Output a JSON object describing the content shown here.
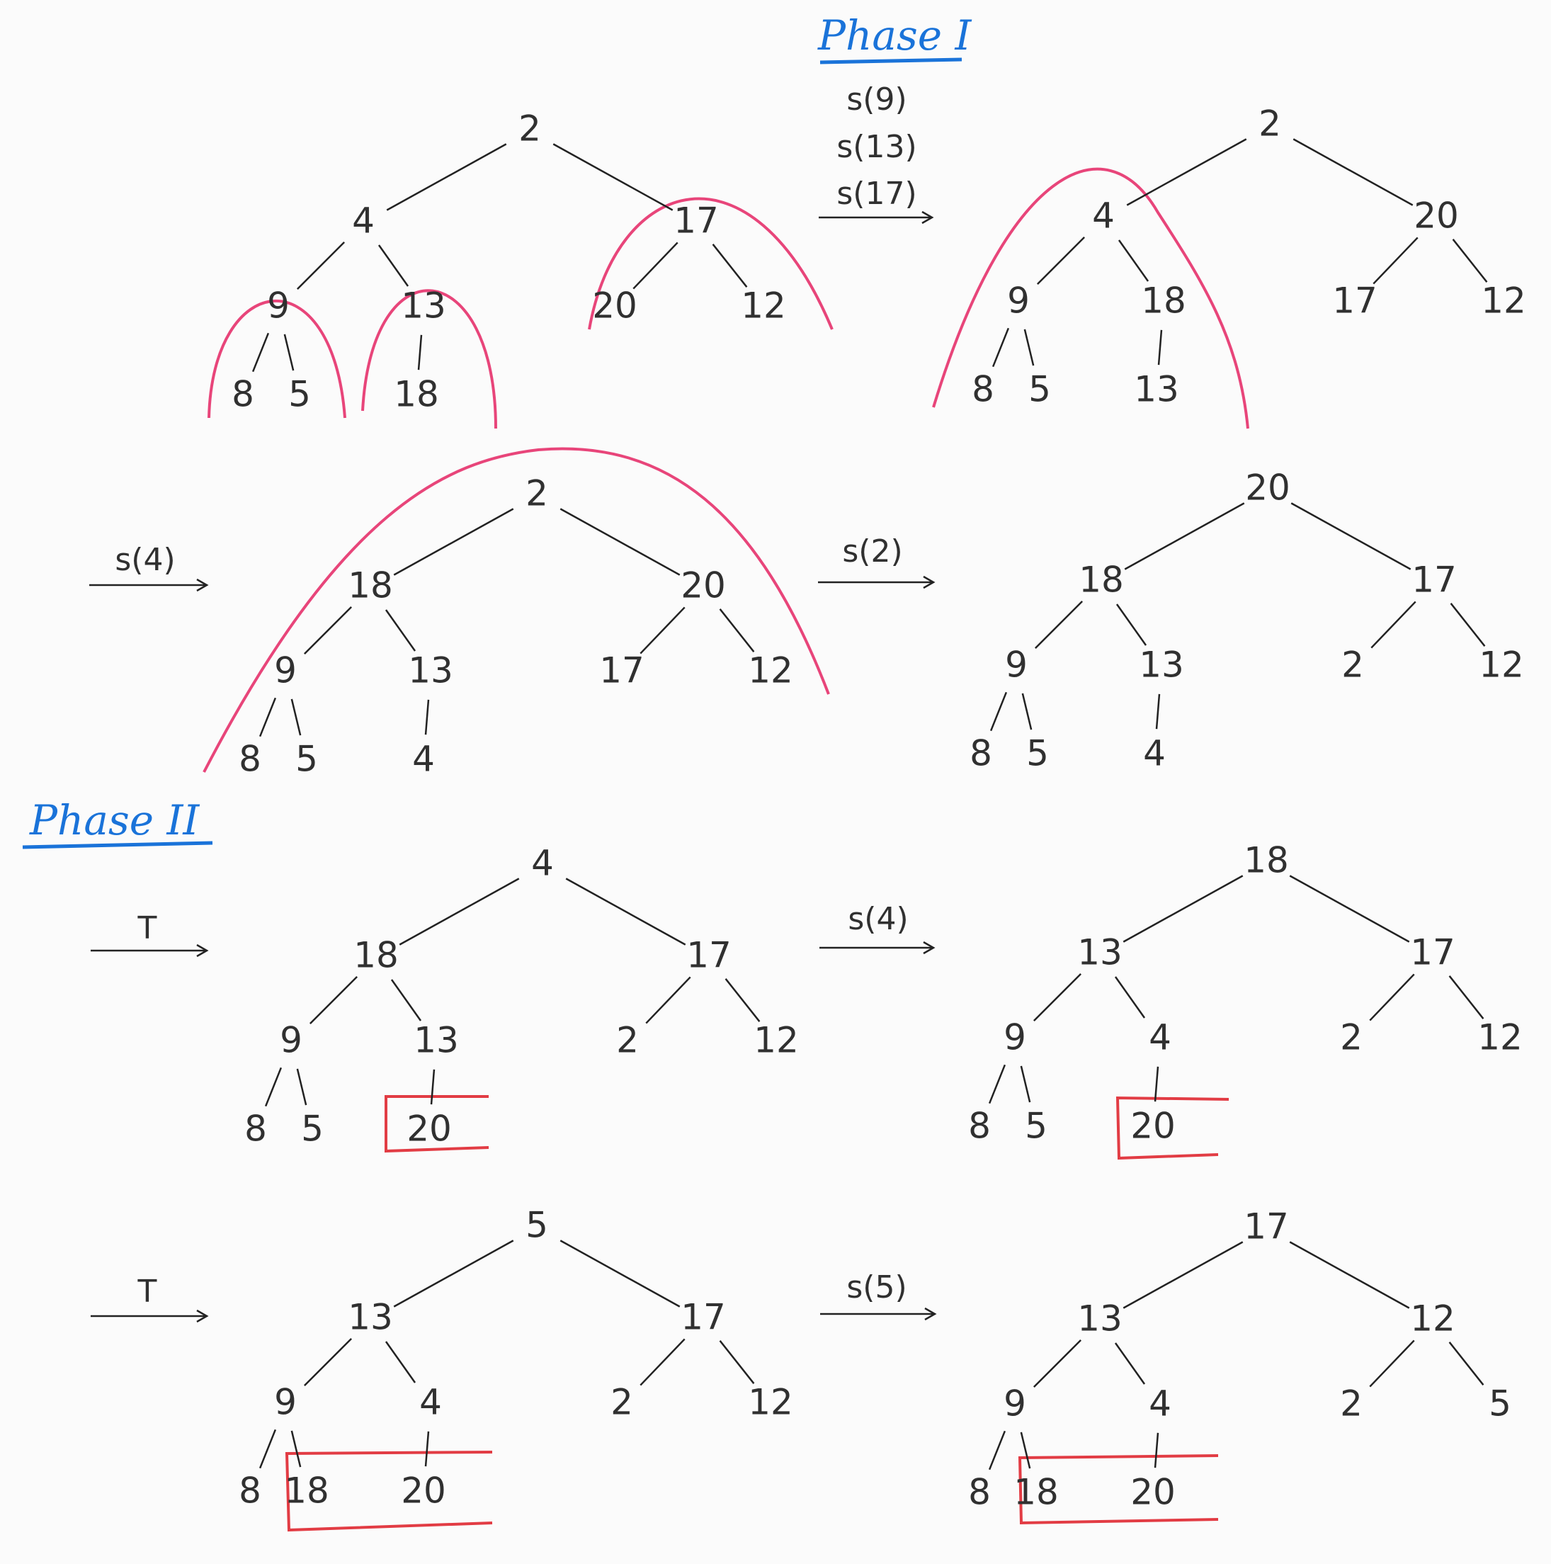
{
  "phase1_title": "Phase I",
  "phase2_title": "Phase II",
  "ops": {
    "op1": [
      "s(9)",
      "s(13)",
      "s(17)"
    ],
    "op2": "s(4)",
    "op3": "s(2)",
    "op4": "T",
    "op5": "s(4)",
    "op6": "T",
    "op7": "s(5)"
  },
  "trees": [
    {
      "id": "t1",
      "nodes": [
        2,
        4,
        17,
        9,
        13,
        20,
        12,
        8,
        5,
        18
      ]
    },
    {
      "id": "t2",
      "nodes": [
        2,
        4,
        20,
        9,
        18,
        17,
        12,
        8,
        5,
        13
      ]
    },
    {
      "id": "t3",
      "nodes": [
        2,
        18,
        20,
        9,
        13,
        17,
        12,
        8,
        5,
        4
      ]
    },
    {
      "id": "t4",
      "nodes": [
        20,
        18,
        17,
        9,
        13,
        2,
        12,
        8,
        5,
        4
      ]
    },
    {
      "id": "t5",
      "nodes": [
        4,
        18,
        17,
        9,
        13,
        2,
        12,
        8,
        5,
        20
      ]
    },
    {
      "id": "t6",
      "nodes": [
        18,
        13,
        17,
        9,
        4,
        2,
        12,
        8,
        5,
        20
      ]
    },
    {
      "id": "t7",
      "nodes": [
        5,
        13,
        17,
        9,
        4,
        2,
        12,
        8,
        18,
        20
      ]
    },
    {
      "id": "t8",
      "nodes": [
        17,
        13,
        12,
        9,
        4,
        2,
        5,
        8,
        18,
        20
      ]
    }
  ],
  "colors": {
    "ink": "#303030",
    "phase": "#1a73d9",
    "heap_arc": "#e8457a",
    "sorted_box": "#e23c44"
  }
}
